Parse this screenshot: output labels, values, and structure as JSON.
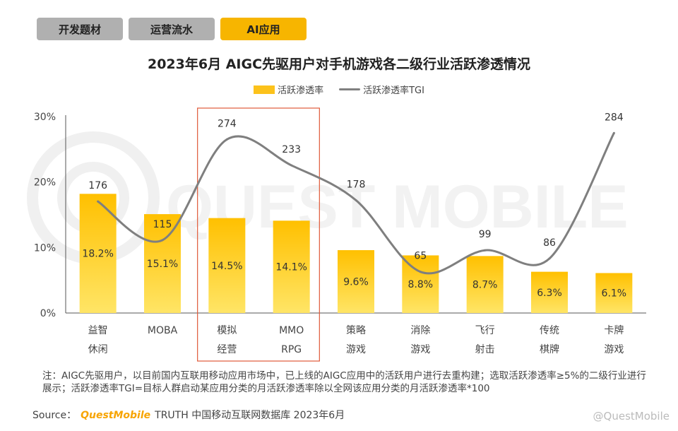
{
  "tabs": [
    {
      "label": "开发题材",
      "active": false
    },
    {
      "label": "运营流水",
      "active": false
    },
    {
      "label": "AI应用",
      "active": true
    }
  ],
  "chart_data": {
    "type": "bar",
    "title": "2023年6月 AIGC先驱用户对手机游戏各二级行业活跃渗透情况",
    "categories": [
      [
        "益智",
        "休闲"
      ],
      [
        "MOBA"
      ],
      [
        "模拟",
        "经营"
      ],
      [
        "MMO",
        "RPG"
      ],
      [
        "策略",
        "游戏"
      ],
      [
        "消除",
        "游戏"
      ],
      [
        "飞行",
        "射击"
      ],
      [
        "传统",
        "棋牌"
      ],
      [
        "卡牌",
        "游戏"
      ]
    ],
    "series": [
      {
        "name": "活跃渗透率",
        "type": "bar",
        "axis": "left",
        "values": [
          18.2,
          15.1,
          14.5,
          14.1,
          9.6,
          8.8,
          8.7,
          6.3,
          6.1
        ],
        "labels": [
          "18.2%",
          "15.1%",
          "14.5%",
          "14.1%",
          "9.6%",
          "8.8%",
          "8.7%",
          "6.3%",
          "6.1%"
        ]
      },
      {
        "name": "活跃渗透率TGI",
        "type": "line",
        "axis": "right",
        "values": [
          176,
          115,
          274,
          233,
          178,
          65,
          99,
          86,
          284
        ],
        "labels": [
          "176",
          "115",
          "274",
          "233",
          "178",
          "65",
          "99",
          "86",
          "284"
        ]
      }
    ],
    "y_left": {
      "min": 0,
      "max": 30,
      "ticks": [
        "0%",
        "10%",
        "20%",
        "30%"
      ],
      "tick_values": [
        0,
        10,
        20,
        30
      ]
    },
    "y_right": {
      "min": 0,
      "max": 310
    },
    "highlight": {
      "from_index": 2,
      "to_index": 3,
      "color": "#e05a3a"
    },
    "legend_position": "top-center",
    "colors": {
      "bar_top": "#ffc000",
      "bar_bottom": "#ffe566",
      "line": "#7f7f7f"
    }
  },
  "notes": "注：AIGC先驱用户，以目前国内互联用移动应用市场中，已上线的AIGC应用中的活跃用户进行去重构建；选取活跃渗透率≥5%的二级行业进行展示；活跃渗透率TGI=目标人群启动某应用分类的月活跃渗透率除以全网该应用分类的月活跃渗透率*100",
  "source": {
    "prefix": "Source：",
    "brand": "QuestMobile",
    "rest": "TRUTH 中国移动互联网数据库 2023年6月"
  },
  "watermark": "QUEST MOBILE",
  "credit": "@QuestMobile"
}
